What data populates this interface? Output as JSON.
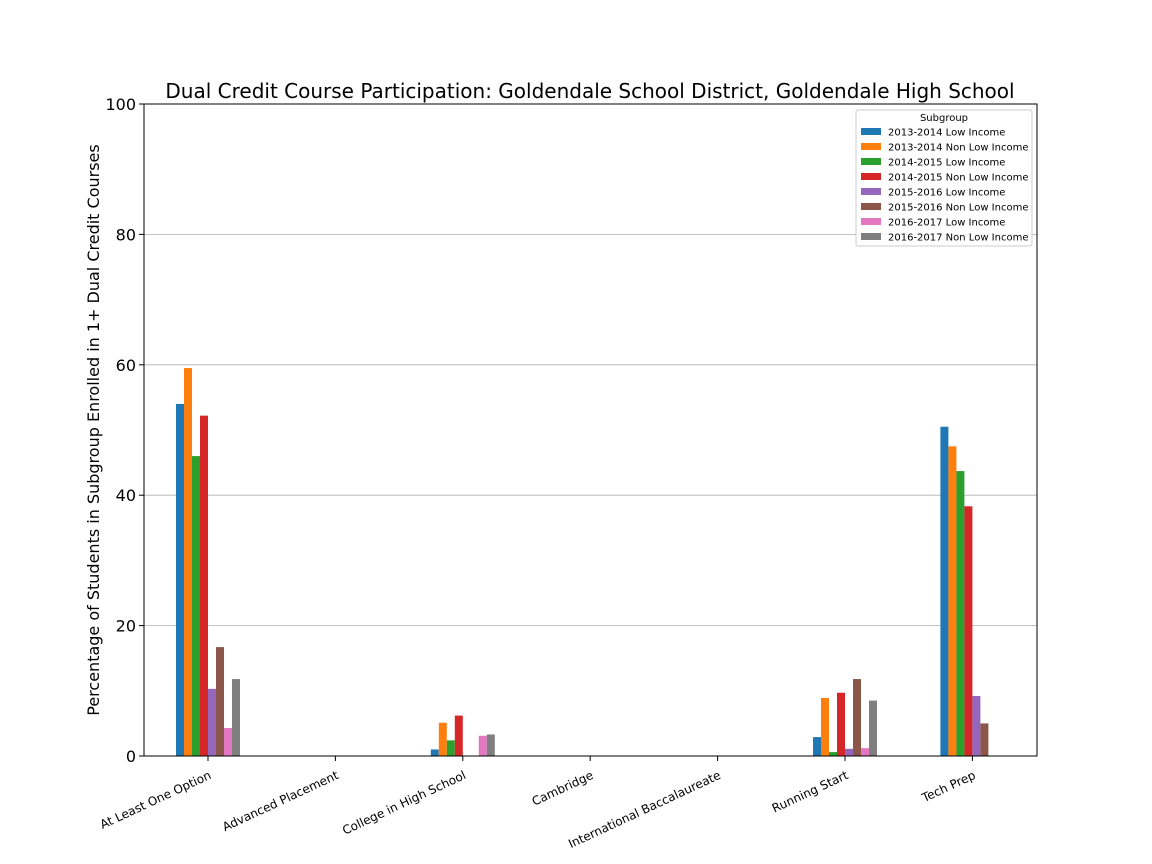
{
  "chart_data": {
    "type": "bar",
    "title": "Dual Credit Course Participation: Goldendale School District, Goldendale High School",
    "xlabel": "",
    "ylabel": "Percentage of Students in Subgroup Enrolled in 1+ Dual Credit Courses",
    "ylim": [
      0,
      100
    ],
    "yticks": [
      0,
      20,
      40,
      60,
      80,
      100
    ],
    "grid": "horizontal",
    "legend_title": "Subgroup",
    "legend_position": "top-right",
    "categories": [
      "At Least One Option",
      "Advanced Placement",
      "College in High School",
      "Cambridge",
      "International Baccalaureate",
      "Running Start",
      "Tech Prep"
    ],
    "series": [
      {
        "name": "2013-2014 Low Income",
        "color": "#1f77b4",
        "values": [
          54,
          0,
          1,
          0,
          0,
          2.9,
          50.5
        ]
      },
      {
        "name": "2013-2014 Non Low Income",
        "color": "#ff7f0e",
        "values": [
          59.5,
          0,
          5.1,
          0,
          0,
          8.9,
          47.5
        ]
      },
      {
        "name": "2014-2015 Low Income",
        "color": "#2ca02c",
        "values": [
          46,
          0,
          2.4,
          0,
          0,
          0.6,
          43.7
        ]
      },
      {
        "name": "2014-2015 Non Low Income",
        "color": "#d62728",
        "values": [
          52.2,
          0,
          6.2,
          0,
          0,
          9.7,
          38.3
        ]
      },
      {
        "name": "2015-2016 Low Income",
        "color": "#9467bd",
        "values": [
          10.3,
          0,
          0,
          0,
          0,
          1.1,
          9.2
        ]
      },
      {
        "name": "2015-2016 Non Low Income",
        "color": "#8c564b",
        "values": [
          16.7,
          0,
          0,
          0,
          0,
          11.8,
          5
        ]
      },
      {
        "name": "2016-2017 Low Income",
        "color": "#e377c2",
        "values": [
          4.3,
          0,
          3.1,
          0,
          0,
          1.2,
          0
        ]
      },
      {
        "name": "2016-2017 Non Low Income",
        "color": "#7f7f7f",
        "values": [
          11.8,
          0,
          3.3,
          0,
          0,
          8.5,
          0
        ]
      }
    ]
  }
}
